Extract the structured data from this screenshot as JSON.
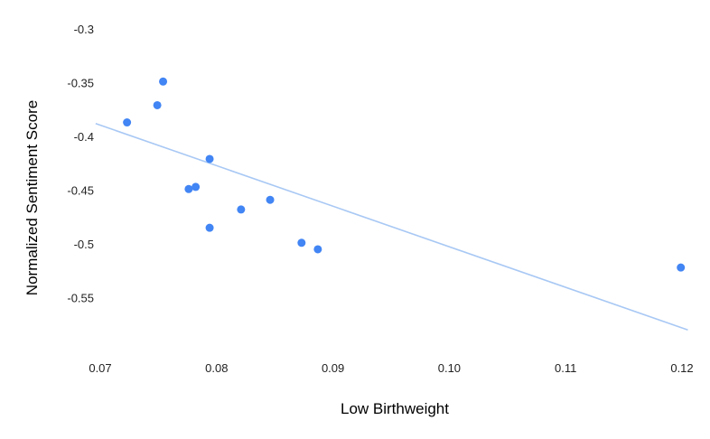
{
  "chart_data": {
    "type": "scatter",
    "title": "",
    "xlabel": "Low Birthweight",
    "ylabel": "Normalized Sentiment Score",
    "xlim": [
      0.07,
      0.12
    ],
    "ylim": [
      -0.6,
      -0.3
    ],
    "x_ticks": [
      "0.07",
      "0.08",
      "0.09",
      "0.10",
      "0.11",
      "0.12"
    ],
    "y_ticks": [
      "-0.3",
      "-0.35",
      "-0.4",
      "-0.45",
      "-0.5",
      "-0.55"
    ],
    "grid": false,
    "legend": "none",
    "point_color": "#4285f4",
    "trendline_color": "#a8c8f4",
    "points": [
      {
        "x": 0.0723,
        "y": -0.387
      },
      {
        "x": 0.0749,
        "y": -0.371
      },
      {
        "x": 0.0754,
        "y": -0.349
      },
      {
        "x": 0.0776,
        "y": -0.449
      },
      {
        "x": 0.0782,
        "y": -0.447
      },
      {
        "x": 0.0794,
        "y": -0.421
      },
      {
        "x": 0.0794,
        "y": -0.485
      },
      {
        "x": 0.0821,
        "y": -0.468
      },
      {
        "x": 0.0846,
        "y": -0.459
      },
      {
        "x": 0.0873,
        "y": -0.499
      },
      {
        "x": 0.0887,
        "y": -0.505
      },
      {
        "x": 0.1199,
        "y": -0.522
      }
    ],
    "trendline": {
      "type": "linear",
      "x": [
        0.0696,
        0.1205
      ],
      "y": [
        -0.388,
        -0.58
      ]
    }
  }
}
